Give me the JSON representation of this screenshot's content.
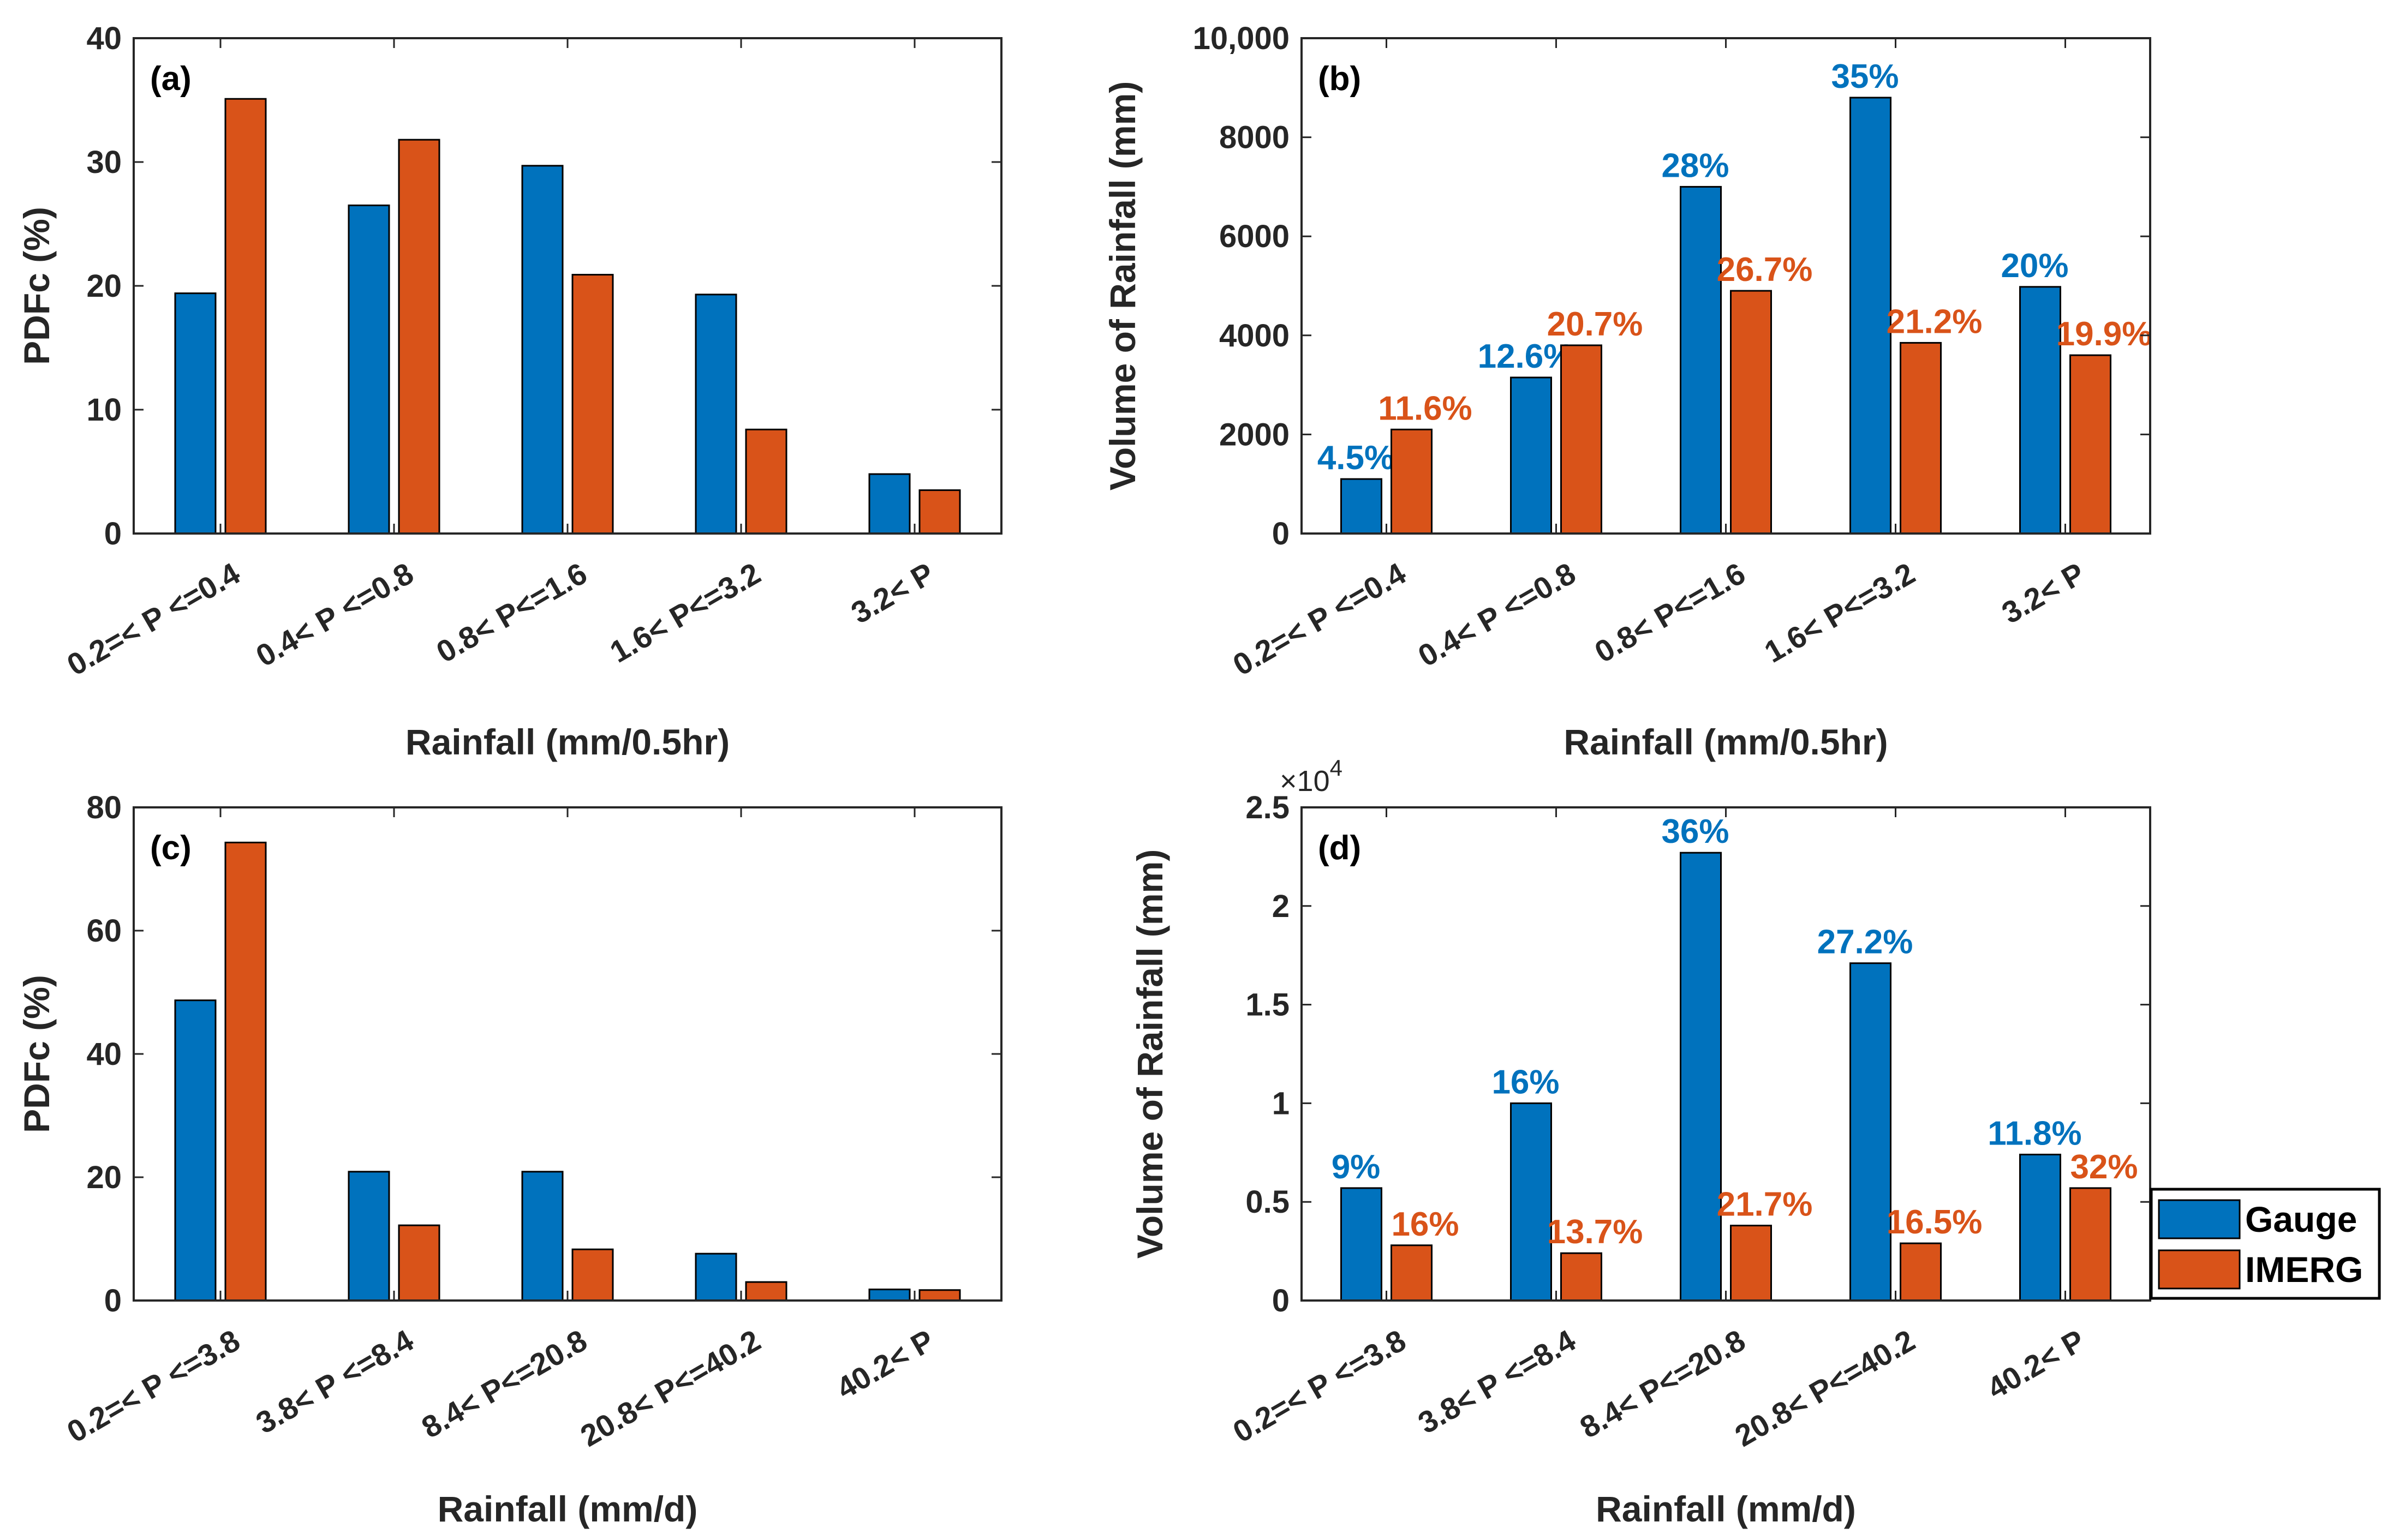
{
  "colors": {
    "gauge": "#0072BD",
    "imerg": "#D95319",
    "axis": "#262626"
  },
  "legend": {
    "items": [
      "Gauge",
      "IMERG"
    ],
    "location": "right of panel (d)"
  },
  "chart_data": [
    {
      "panel": "(a)",
      "type": "bar",
      "categories": [
        "0.2=< P <=0.4",
        "0.4< P <=0.8",
        "0.8< P<=1.6",
        "1.6< P<=3.2",
        "3.2< P"
      ],
      "series": [
        {
          "name": "Gauge",
          "values": [
            19.4,
            26.5,
            29.7,
            19.3,
            4.8
          ]
        },
        {
          "name": "IMERG",
          "values": [
            35.1,
            31.8,
            20.9,
            8.4,
            3.5
          ]
        }
      ],
      "xlabel": "Rainfall (mm/0.5hr)",
      "ylabel": "PDFc (%)",
      "ylim": [
        0,
        40
      ],
      "yticks": [
        "0",
        "10",
        "20",
        "30",
        "40"
      ],
      "tick_values": [
        0,
        10,
        20,
        30,
        40
      ],
      "grid": false
    },
    {
      "panel": "(b)",
      "type": "bar",
      "categories": [
        "0.2=< P <=0.4",
        "0.4< P <=0.8",
        "0.8< P<=1.6",
        "1.6< P<=3.2",
        "3.2< P"
      ],
      "series": [
        {
          "name": "Gauge",
          "values": [
            1100,
            3150,
            7000,
            8800,
            4980
          ],
          "labels": [
            "4.5%",
            "12.6%",
            "28%",
            "35%",
            "20%"
          ]
        },
        {
          "name": "IMERG",
          "values": [
            2100,
            3800,
            4900,
            3850,
            3600
          ],
          "labels": [
            "11.6%",
            "20.7%",
            "26.7%",
            "21.2%",
            "19.9%"
          ]
        }
      ],
      "xlabel": "Rainfall (mm/0.5hr)",
      "ylabel": "Volume of Rainfall (mm)",
      "ylim": [
        0,
        10000
      ],
      "yticks": [
        "0",
        "2000",
        "4000",
        "6000",
        "8000",
        "10,000"
      ],
      "tick_values": [
        0,
        2000,
        4000,
        6000,
        8000,
        10000
      ],
      "grid": false
    },
    {
      "panel": "(c)",
      "type": "bar",
      "categories": [
        "0.2=< P <=3.8",
        "3.8< P <=8.4",
        "8.4< P<=20.8",
        "20.8< P<=40.2",
        "40.2< P"
      ],
      "series": [
        {
          "name": "Gauge",
          "values": [
            48.7,
            20.9,
            20.9,
            7.6,
            1.8
          ]
        },
        {
          "name": "IMERG",
          "values": [
            74.3,
            12.2,
            8.3,
            3.0,
            1.7
          ]
        }
      ],
      "xlabel": "Rainfall (mm/d)",
      "ylabel": "PDFc (%)",
      "ylim": [
        0,
        80
      ],
      "yticks": [
        "0",
        "20",
        "40",
        "60",
        "80"
      ],
      "tick_values": [
        0,
        20,
        40,
        60,
        80
      ],
      "grid": false
    },
    {
      "panel": "(d)",
      "type": "bar",
      "categories": [
        "0.2=< P <=3.8",
        "3.8< P <=8.4",
        "8.4< P<=20.8",
        "20.8< P<=40.2",
        "40.2< P"
      ],
      "series": [
        {
          "name": "Gauge",
          "values": [
            0.57,
            1.0,
            2.27,
            1.71,
            0.74
          ],
          "labels": [
            "9%",
            "16%",
            "36%",
            "27.2%",
            "11.8%"
          ]
        },
        {
          "name": "IMERG",
          "values": [
            0.28,
            0.24,
            0.38,
            0.29,
            0.57
          ],
          "labels": [
            "16%",
            "13.7%",
            "21.7%",
            "16.5%",
            "32%"
          ]
        }
      ],
      "xlabel": "Rainfall (mm/d)",
      "ylabel": "Volume of Rainfall (mm)",
      "ylim": [
        0,
        2.5
      ],
      "yticks": [
        "0",
        "0.5",
        "1",
        "1.5",
        "2",
        "2.5"
      ],
      "tick_values": [
        0,
        0.5,
        1,
        1.5,
        2,
        2.5
      ],
      "exponent_base": "×10",
      "exponent": "4",
      "grid": false
    }
  ]
}
